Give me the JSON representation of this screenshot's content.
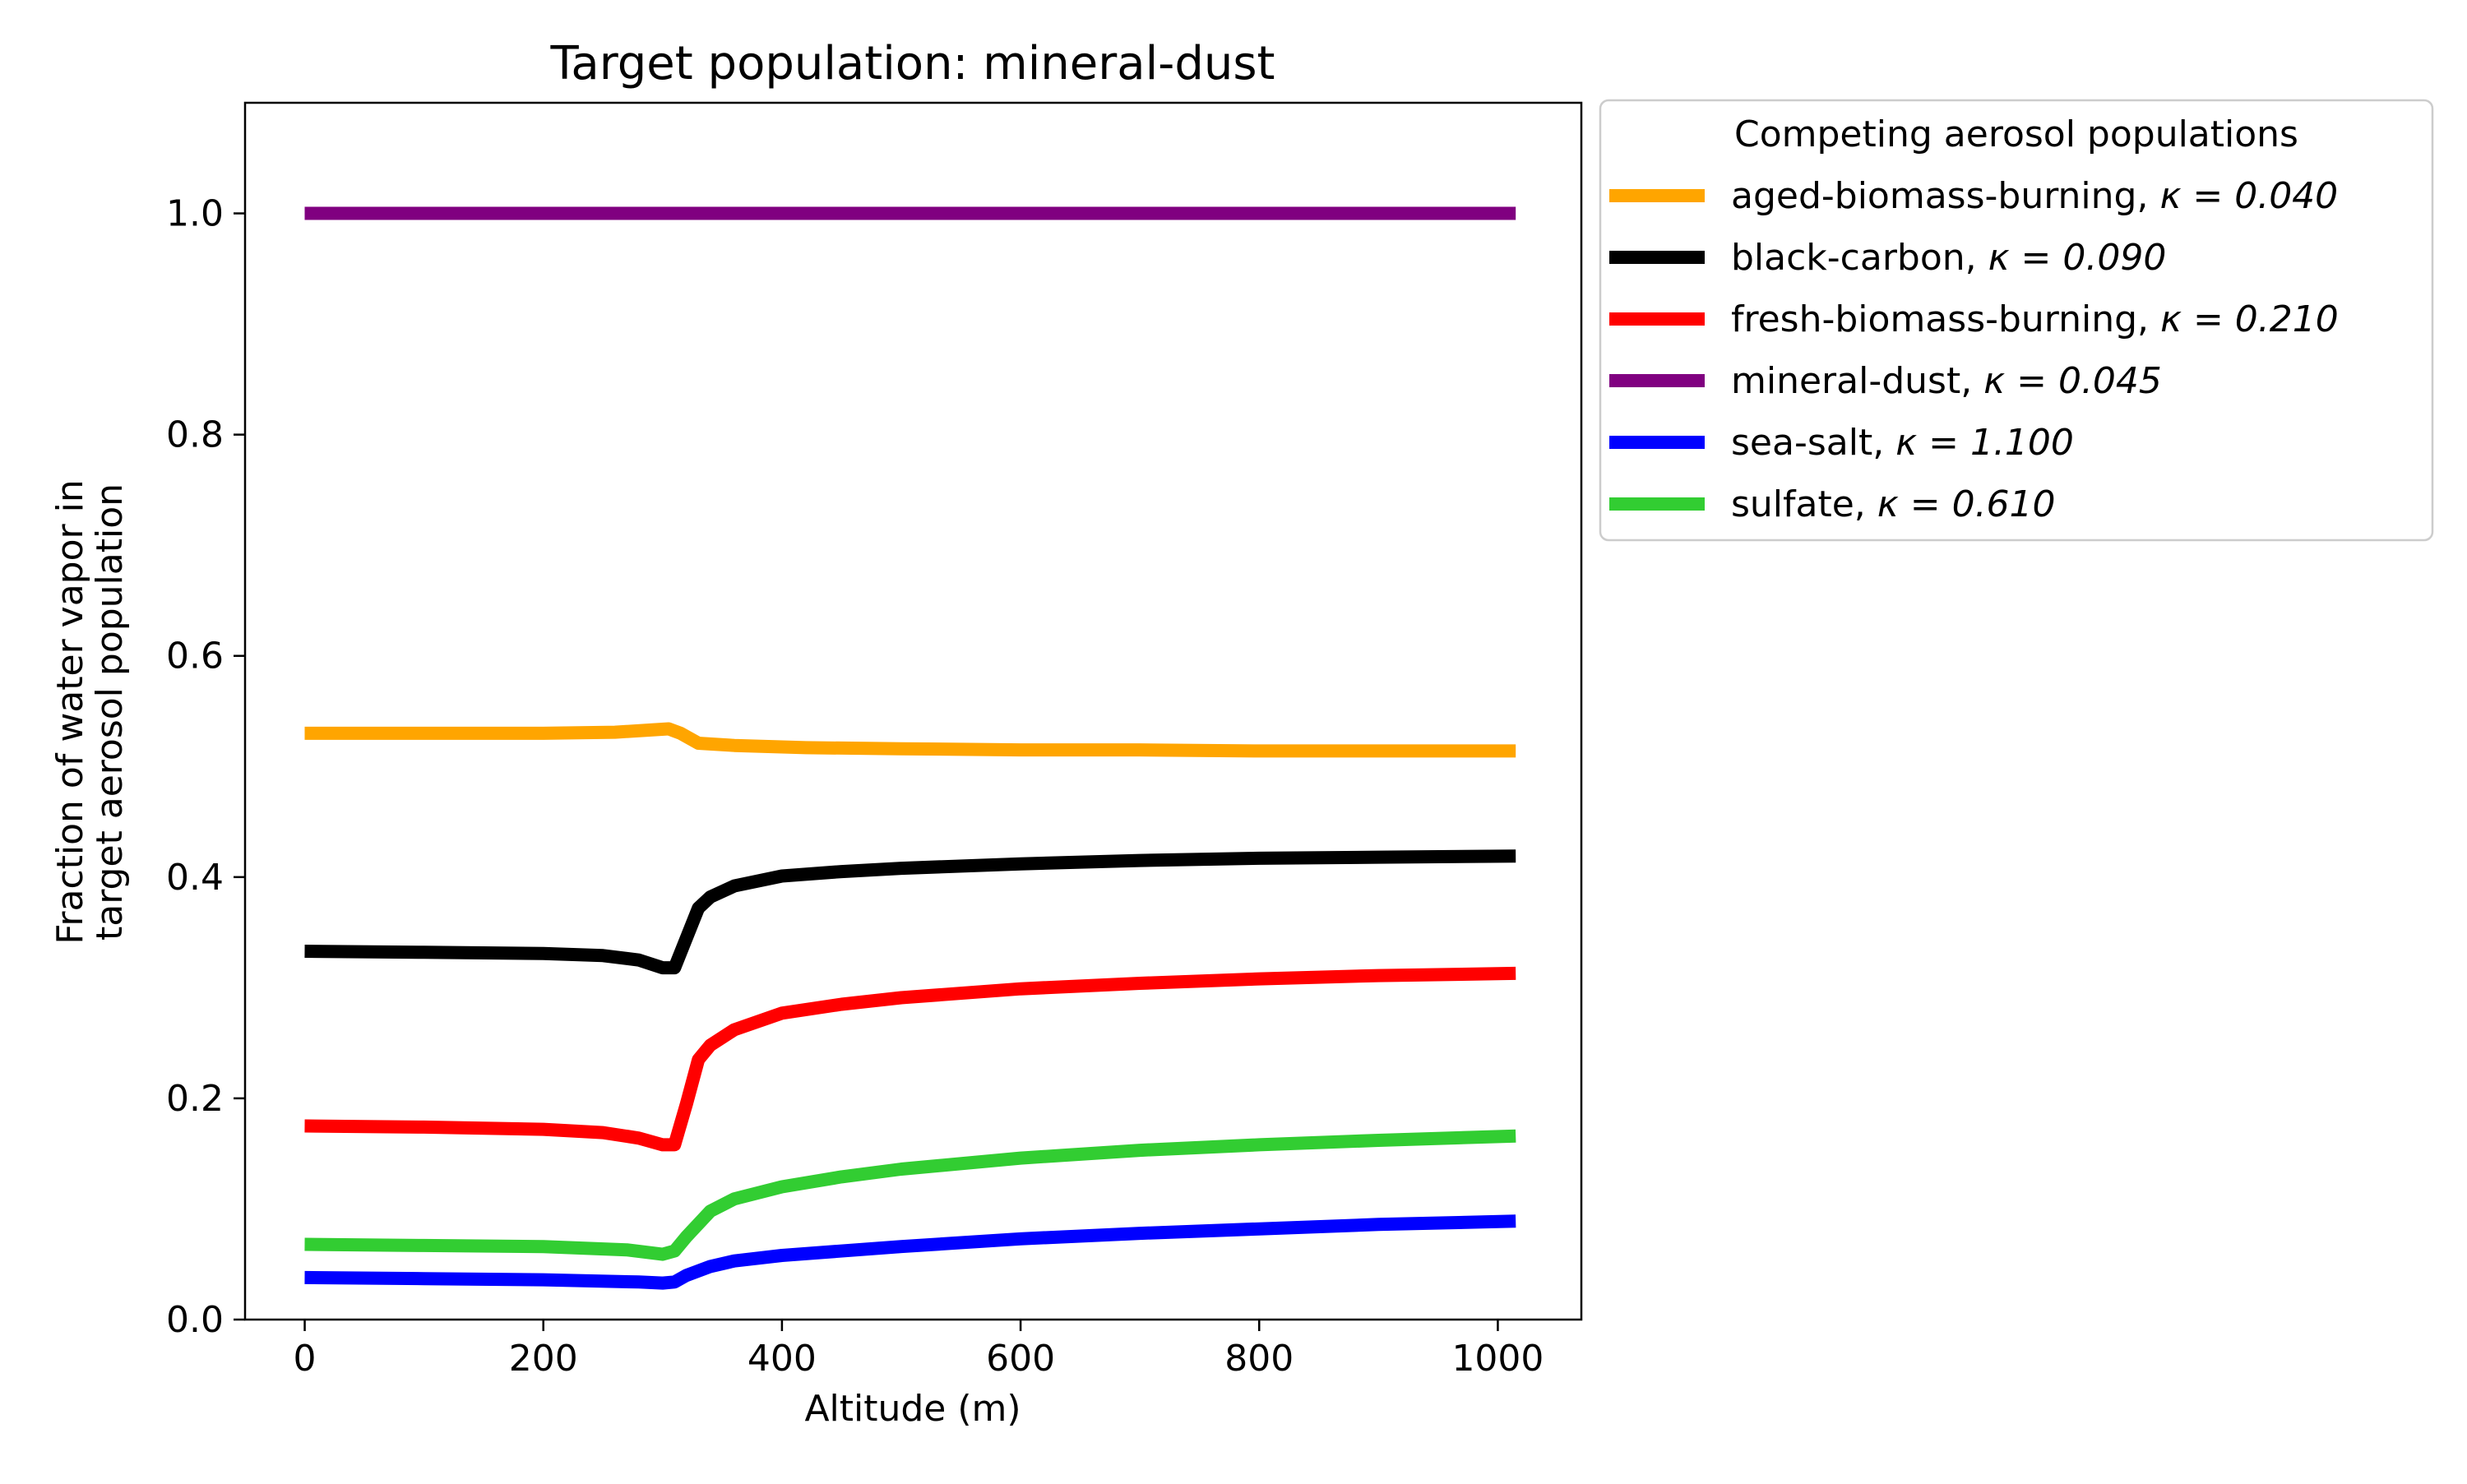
{
  "chart_data": {
    "type": "line",
    "title": "Target population: mineral-dust",
    "xlabel": "Altitude (m)",
    "ylabel_lines": [
      "Fraction of water vapor in",
      "target aerosol population"
    ],
    "xlim": [
      -50,
      1070
    ],
    "ylim": [
      0,
      1.1
    ],
    "x_ticks": [
      0,
      200,
      400,
      600,
      800,
      1000
    ],
    "y_ticks": [
      0.0,
      0.2,
      0.4,
      0.6,
      0.8,
      1.0
    ],
    "x_tick_labels": [
      "0",
      "200",
      "400",
      "600",
      "800",
      "1000"
    ],
    "y_tick_labels": [
      "0.0",
      "0.2",
      "0.4",
      "0.6",
      "0.8",
      "1.0"
    ],
    "grid": false,
    "legend": {
      "title": "Competing aerosol populations",
      "placement": "outside-upper-right"
    },
    "series": [
      {
        "name": "aged-biomass-burning, κ = 0.040",
        "name_main": "aged-biomass-burning, ",
        "kappa_label": "κ = 0.040",
        "color": "#FFA500",
        "x": [
          0,
          100,
          200,
          260,
          290,
          305,
          315,
          330,
          360,
          420,
          500,
          600,
          700,
          800,
          900,
          1015
        ],
        "y": [
          0.53,
          0.53,
          0.53,
          0.531,
          0.533,
          0.534,
          0.53,
          0.521,
          0.519,
          0.517,
          0.516,
          0.515,
          0.515,
          0.514,
          0.514,
          0.514
        ]
      },
      {
        "name": "black-carbon, κ = 0.090",
        "name_main": "black-carbon, ",
        "kappa_label": "κ = 0.090",
        "color": "#000000",
        "x": [
          0,
          100,
          200,
          250,
          280,
          300,
          310,
          320,
          330,
          340,
          360,
          400,
          450,
          500,
          600,
          700,
          800,
          900,
          1015
        ],
        "y": [
          0.333,
          0.332,
          0.331,
          0.329,
          0.325,
          0.318,
          0.318,
          0.345,
          0.372,
          0.382,
          0.392,
          0.401,
          0.405,
          0.408,
          0.412,
          0.415,
          0.417,
          0.418,
          0.419
        ]
      },
      {
        "name": "fresh-biomass-burning, κ = 0.210",
        "name_main": "fresh-biomass-burning, ",
        "kappa_label": "κ = 0.210",
        "color": "#FF0000",
        "x": [
          0,
          100,
          200,
          250,
          280,
          300,
          310,
          320,
          330,
          340,
          360,
          400,
          450,
          500,
          600,
          700,
          800,
          900,
          1015
        ],
        "y": [
          0.175,
          0.174,
          0.172,
          0.169,
          0.164,
          0.158,
          0.158,
          0.195,
          0.235,
          0.248,
          0.262,
          0.277,
          0.285,
          0.291,
          0.299,
          0.304,
          0.308,
          0.311,
          0.313
        ]
      },
      {
        "name": "mineral-dust, κ = 0.045",
        "name_main": "mineral-dust, ",
        "kappa_label": "κ = 0.045",
        "color": "#800080",
        "x": [
          0,
          1015
        ],
        "y": [
          1.0,
          1.0
        ]
      },
      {
        "name": "sea-salt, κ = 1.100",
        "name_main": "sea-salt, ",
        "kappa_label": "κ = 1.100",
        "color": "#0000FF",
        "x": [
          0,
          100,
          200,
          280,
          300,
          310,
          320,
          340,
          360,
          400,
          500,
          600,
          700,
          800,
          900,
          1015
        ],
        "y": [
          0.038,
          0.037,
          0.036,
          0.034,
          0.033,
          0.034,
          0.04,
          0.048,
          0.053,
          0.058,
          0.066,
          0.073,
          0.078,
          0.082,
          0.086,
          0.089
        ]
      },
      {
        "name": "sulfate, κ = 0.610",
        "name_main": "sulfate, ",
        "kappa_label": "κ = 0.610",
        "color": "#32CD32",
        "x": [
          0,
          100,
          200,
          270,
          300,
          310,
          320,
          340,
          360,
          400,
          450,
          500,
          600,
          700,
          800,
          900,
          1015
        ],
        "y": [
          0.068,
          0.067,
          0.066,
          0.063,
          0.059,
          0.062,
          0.075,
          0.098,
          0.109,
          0.12,
          0.129,
          0.136,
          0.146,
          0.153,
          0.158,
          0.162,
          0.166
        ]
      }
    ]
  }
}
